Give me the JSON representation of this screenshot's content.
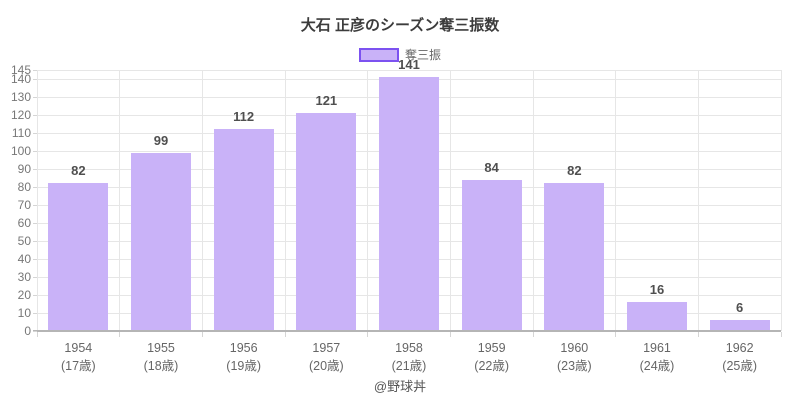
{
  "footer": "@野球丼",
  "colors": {
    "bar_fill": "#c9b2f8",
    "bar_border": "#7c52f0",
    "grid": "#e6e6e6",
    "axis_line": "#b5b5b5",
    "title_text": "#3c3c3c",
    "tick_text": "#777777",
    "value_text": "#4f4f4f",
    "category_text": "#666666"
  },
  "chart_data": {
    "type": "bar",
    "title": "大石 正彦のシーズン奪三振数",
    "series_name": "奪三振",
    "categories": [
      "1954",
      "1955",
      "1956",
      "1957",
      "1958",
      "1959",
      "1960",
      "1961",
      "1962"
    ],
    "category_sublabels": [
      "(17歳)",
      "(18歳)",
      "(19歳)",
      "(20歳)",
      "(21歳)",
      "(22歳)",
      "(23歳)",
      "(24歳)",
      "(25歳)"
    ],
    "values": [
      82,
      99,
      112,
      121,
      141,
      84,
      82,
      16,
      6
    ],
    "xlabel": "",
    "ylabel": "",
    "ylim": [
      0,
      145
    ],
    "yticks": [
      0,
      10,
      20,
      30,
      40,
      50,
      60,
      70,
      80,
      90,
      100,
      110,
      120,
      130,
      140,
      145
    ],
    "grid": true,
    "legend_position": "top"
  }
}
